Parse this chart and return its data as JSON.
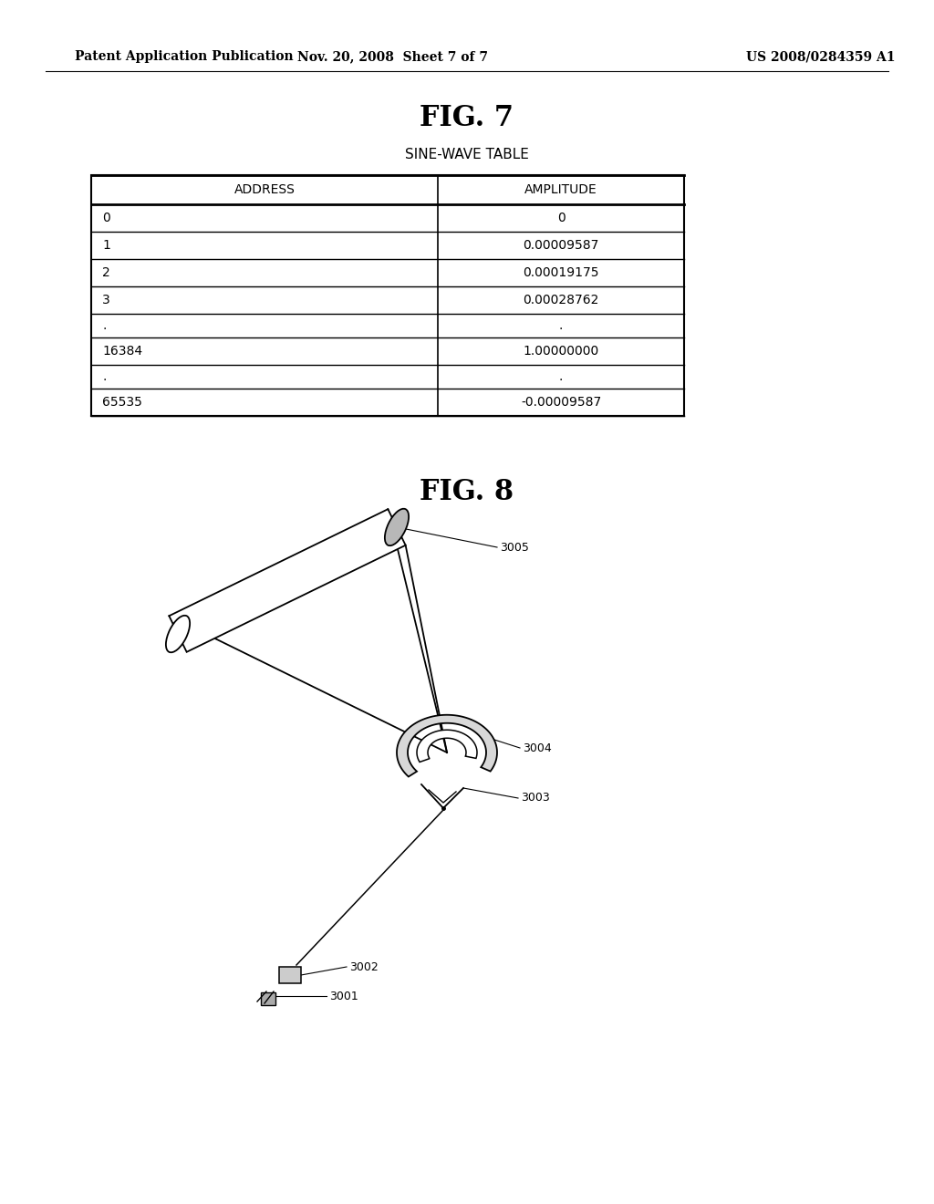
{
  "bg_color": "#ffffff",
  "header_left": "Patent Application Publication",
  "header_center": "Nov. 20, 2008  Sheet 7 of 7",
  "header_right": "US 2008/0284359 A1",
  "fig7_title": "FIG. 7",
  "fig7_subtitle": "SINE-WAVE TABLE",
  "table_col_headers": [
    "ADDRESS",
    "AMPLITUDE"
  ],
  "table_rows": [
    [
      "0",
      "0"
    ],
    [
      "1",
      "0.00009587"
    ],
    [
      "2",
      "0.00019175"
    ],
    [
      "3",
      "0.00028762"
    ],
    [
      ".",
      "."
    ],
    [
      "16384",
      "1.00000000"
    ],
    [
      ".",
      "."
    ],
    [
      "65535",
      "-0.00009587"
    ]
  ],
  "fig8_title": "FIG. 8",
  "label_fontsize": 9,
  "header_fontsize": 10,
  "fig_title_fontsize": 22,
  "table_label_fontsize": 10,
  "table_data_fontsize": 10
}
